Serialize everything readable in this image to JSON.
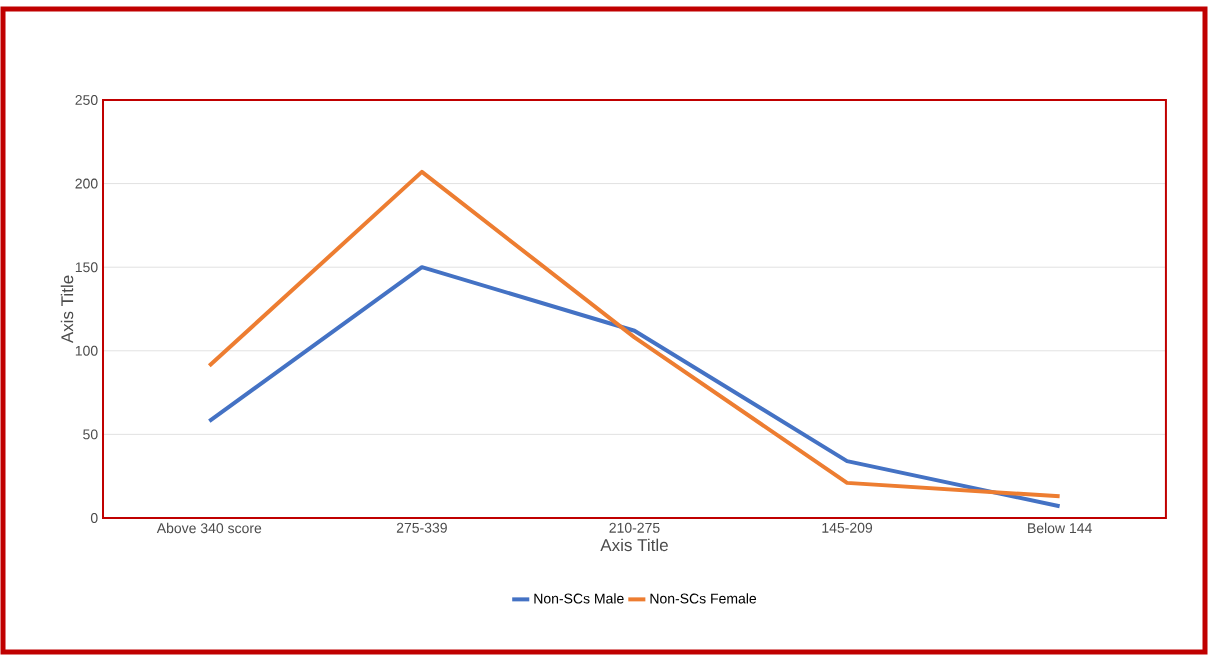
{
  "chart_data": {
    "type": "line",
    "xlabel": "Axis Title",
    "ylabel": "Axis Title",
    "categories": [
      "Above 340 score",
      "275-339",
      "210-275",
      "145-209",
      "Below 144"
    ],
    "series": [
      {
        "name": "Non-SCs Male",
        "color": "#4472c4",
        "values": [
          58,
          150,
          112,
          34,
          7
        ]
      },
      {
        "name": "Non-SCs Female",
        "color": "#ed7d31",
        "values": [
          91,
          207,
          108,
          21,
          13
        ]
      }
    ],
    "ylim": [
      0,
      250
    ],
    "yticks": [
      0,
      50,
      100,
      150,
      200,
      250
    ],
    "grid": "y",
    "legend": "bottom",
    "marker": "none",
    "line_style": "solid"
  }
}
